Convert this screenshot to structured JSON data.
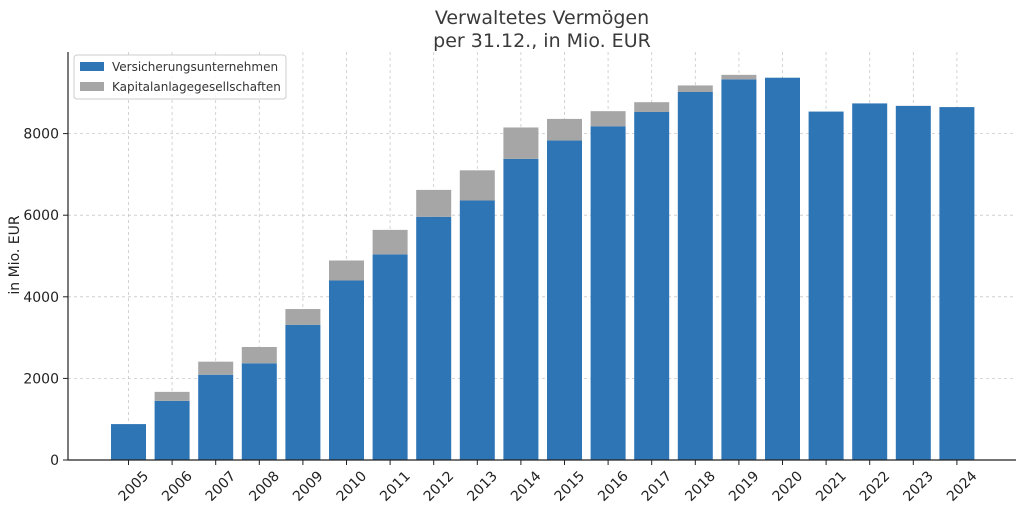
{
  "chart_data": {
    "type": "bar",
    "stacked": true,
    "title": [
      "Verwaltetes Vermögen",
      "per 31.12., in Mio. EUR"
    ],
    "xlabel": "",
    "ylabel": "in Mio. EUR",
    "categories": [
      "2005",
      "2006",
      "2007",
      "2008",
      "2009",
      "2010",
      "2011",
      "2012",
      "2013",
      "2014",
      "2015",
      "2016",
      "2017",
      "2018",
      "2019",
      "2020",
      "2021",
      "2022",
      "2023",
      "2024"
    ],
    "series": [
      {
        "name": "Versicherungsunternehmen",
        "color": "#2e75b6",
        "values": [
          880,
          1450,
          2090,
          2370,
          3310,
          4400,
          5040,
          5960,
          6360,
          7380,
          7830,
          8180,
          8530,
          9020,
          9330,
          9370,
          8540,
          8740,
          8680,
          8650
        ]
      },
      {
        "name": "Kapitalanlagegesellschaften",
        "color": "#a6a6a6",
        "values": [
          0,
          220,
          320,
          400,
          390,
          490,
          600,
          660,
          740,
          770,
          530,
          370,
          240,
          160,
          110,
          0,
          0,
          0,
          0,
          0
        ]
      }
    ],
    "ylim": [
      0,
      10000
    ],
    "yticks": [
      0,
      2000,
      4000,
      6000,
      8000
    ],
    "grid": true,
    "legend": "top-left"
  }
}
